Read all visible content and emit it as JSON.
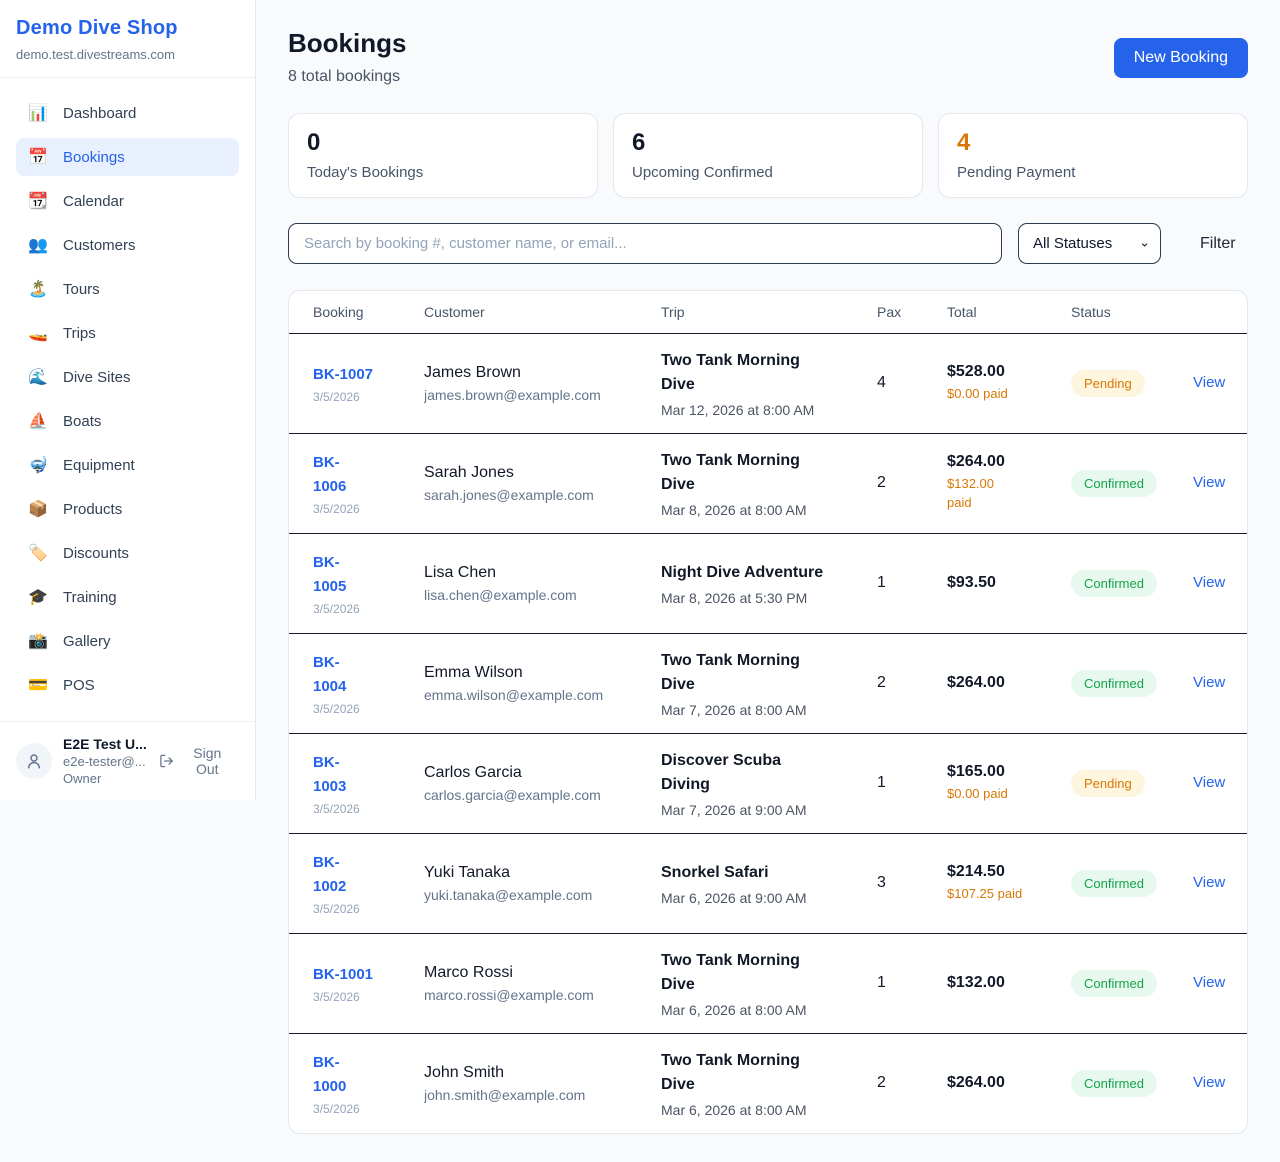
{
  "colors": {
    "accent_blue": "#2563eb",
    "pending_orange": "#d97706",
    "confirmed_green": "#16a34a",
    "page_bg": "#f8fafc",
    "stat_dark": "#111827"
  },
  "sidebar": {
    "brand": {
      "name": "Demo Dive Shop",
      "domain": "demo.test.divestreams.com"
    },
    "nav": [
      {
        "key": "dashboard",
        "label": "Dashboard",
        "icon": "📊",
        "active": false
      },
      {
        "key": "bookings",
        "label": "Bookings",
        "icon": "📅",
        "active": true
      },
      {
        "key": "calendar",
        "label": "Calendar",
        "icon": "📆",
        "active": false
      },
      {
        "key": "customers",
        "label": "Customers",
        "icon": "👥",
        "active": false
      },
      {
        "key": "tours",
        "label": "Tours",
        "icon": "🏝️",
        "active": false
      },
      {
        "key": "trips",
        "label": "Trips",
        "icon": "🚤",
        "active": false
      },
      {
        "key": "dive-sites",
        "label": "Dive Sites",
        "icon": "🌊",
        "active": false
      },
      {
        "key": "boats",
        "label": "Boats",
        "icon": "⛵",
        "active": false
      },
      {
        "key": "equipment",
        "label": "Equipment",
        "icon": "🤿",
        "active": false
      },
      {
        "key": "products",
        "label": "Products",
        "icon": "📦",
        "active": false
      },
      {
        "key": "discounts",
        "label": "Discounts",
        "icon": "🏷️",
        "active": false
      },
      {
        "key": "training",
        "label": "Training",
        "icon": "🎓",
        "active": false
      },
      {
        "key": "gallery",
        "label": "Gallery",
        "icon": "📸",
        "active": false
      },
      {
        "key": "pos",
        "label": "POS",
        "icon": "💳",
        "active": false
      }
    ],
    "user": {
      "name": "E2E Test U...",
      "email": "e2e-tester@...",
      "role": "Owner",
      "sign_out_label": "Sign Out"
    }
  },
  "header": {
    "title": "Bookings",
    "subtitle": "8 total bookings",
    "new_booking_label": "New Booking"
  },
  "stats": [
    {
      "value": "0",
      "label": "Today's Bookings",
      "value_color": "#111827"
    },
    {
      "value": "6",
      "label": "Upcoming Confirmed",
      "value_color": "#111827"
    },
    {
      "value": "4",
      "label": "Pending Payment",
      "value_color": "#d97706"
    }
  ],
  "filters": {
    "search_placeholder": "Search by booking #, customer name, or email...",
    "status_selected": "All Statuses",
    "filter_label": "Filter"
  },
  "table": {
    "columns": [
      "Booking",
      "Customer",
      "Trip",
      "Pax",
      "Total",
      "Status"
    ],
    "view_label": "View",
    "rows": [
      {
        "id": "BK-1007",
        "date": "3/5/2026",
        "customer": "James Brown",
        "email": "james.brown@example.com",
        "trip": "Two Tank Morning\nDive",
        "trip_datetime": "Mar 12, 2026 at 8:00 AM",
        "pax": "4",
        "total": "$528.00",
        "paid": "$0.00 paid",
        "status": "Pending"
      },
      {
        "id": "BK-\n1006",
        "date": "3/5/2026",
        "customer": "Sarah Jones",
        "email": "sarah.jones@example.com",
        "trip": "Two Tank Morning\nDive",
        "trip_datetime": "Mar 8, 2026 at 8:00 AM",
        "pax": "2",
        "total": "$264.00",
        "paid": "$132.00\npaid",
        "status": "Confirmed"
      },
      {
        "id": "BK-\n1005",
        "date": "3/5/2026",
        "customer": "Lisa Chen",
        "email": "lisa.chen@example.com",
        "trip": "Night Dive Adventure",
        "trip_datetime": "Mar 8, 2026 at 5:30 PM",
        "pax": "1",
        "total": "$93.50",
        "paid": "",
        "status": "Confirmed"
      },
      {
        "id": "BK-\n1004",
        "date": "3/5/2026",
        "customer": "Emma Wilson",
        "email": "emma.wilson@example.com",
        "trip": "Two Tank Morning\nDive",
        "trip_datetime": "Mar 7, 2026 at 8:00 AM",
        "pax": "2",
        "total": "$264.00",
        "paid": "",
        "status": "Confirmed"
      },
      {
        "id": "BK-\n1003",
        "date": "3/5/2026",
        "customer": "Carlos Garcia",
        "email": "carlos.garcia@example.com",
        "trip": "Discover Scuba\nDiving",
        "trip_datetime": "Mar 7, 2026 at 9:00 AM",
        "pax": "1",
        "total": "$165.00",
        "paid": "$0.00 paid",
        "status": "Pending"
      },
      {
        "id": "BK-\n1002",
        "date": "3/5/2026",
        "customer": "Yuki Tanaka",
        "email": "yuki.tanaka@example.com",
        "trip": "Snorkel Safari",
        "trip_datetime": "Mar 6, 2026 at 9:00 AM",
        "pax": "3",
        "total": "$214.50",
        "paid": "$107.25 paid",
        "status": "Confirmed"
      },
      {
        "id": "BK-1001",
        "date": "3/5/2026",
        "customer": "Marco Rossi",
        "email": "marco.rossi@example.com",
        "trip": "Two Tank Morning\nDive",
        "trip_datetime": "Mar 6, 2026 at 8:00 AM",
        "pax": "1",
        "total": "$132.00",
        "paid": "",
        "status": "Confirmed"
      },
      {
        "id": "BK-\n1000",
        "date": "3/5/2026",
        "customer": "John Smith",
        "email": "john.smith@example.com",
        "trip": "Two Tank Morning\nDive",
        "trip_datetime": "Mar 6, 2026 at 8:00 AM",
        "pax": "2",
        "total": "$264.00",
        "paid": "",
        "status": "Confirmed"
      }
    ]
  }
}
